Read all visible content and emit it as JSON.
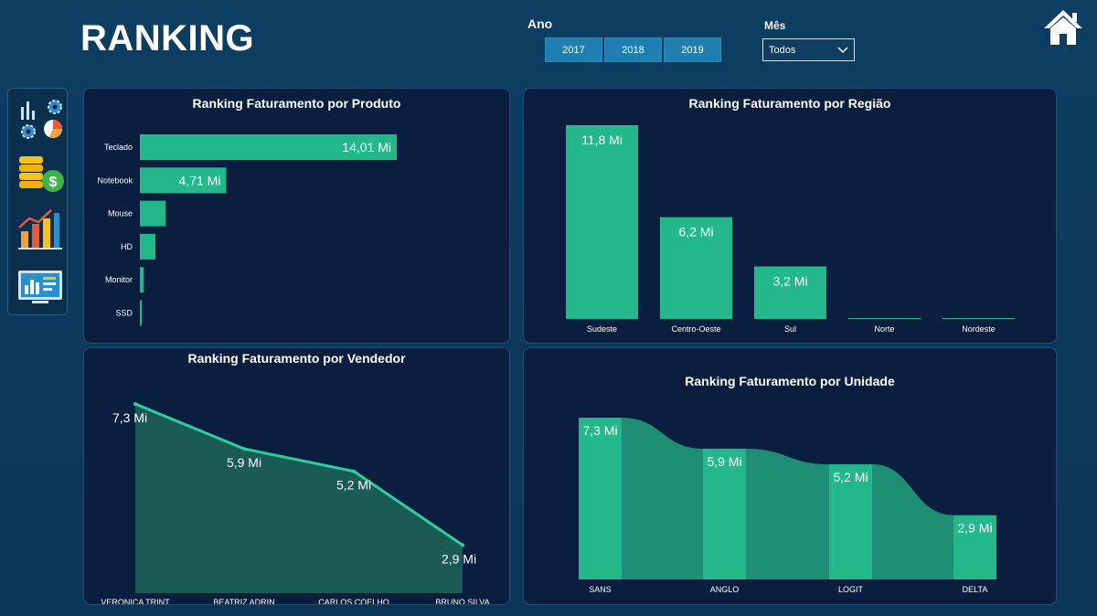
{
  "header": {
    "title": "RANKING",
    "ano_label": "Ano",
    "years": [
      "2017",
      "2018",
      "2019"
    ],
    "mes_label": "Mês",
    "mes_value": "Todos"
  },
  "colors": {
    "bar": "#23b88a",
    "area_fill": "#1b5b55",
    "area_line": "#2ccf9e",
    "ribbon": "#1e8f75",
    "panel_bg": "#0a1e3f"
  },
  "nav": {
    "icons": [
      "settings-chart-icon",
      "money-coins-icon",
      "growth-chart-icon",
      "dashboard-monitor-icon"
    ]
  },
  "panels": {
    "produto": {
      "title": "Ranking Faturamento por Produto",
      "chart_data": {
        "type": "bar",
        "orientation": "horizontal",
        "categories": [
          "Teclado",
          "Notebook",
          "Mouse",
          "HD",
          "Monitor",
          "SSD"
        ],
        "values": [
          14.01,
          4.71,
          1.4,
          0.85,
          0.2,
          0.1
        ],
        "labels": [
          "14,01 Mi",
          "4,71 Mi",
          "",
          "",
          "",
          ""
        ],
        "unit": "Mi"
      }
    },
    "regiao": {
      "title": "Ranking Faturamento por Região",
      "chart_data": {
        "type": "bar",
        "orientation": "vertical",
        "categories": [
          "Sudeste",
          "Centro-Oeste",
          "Sul",
          "Norte",
          "Nordeste"
        ],
        "values": [
          11.8,
          6.2,
          3.2,
          0.05,
          0.02
        ],
        "labels": [
          "11,8 Mi",
          "6,2 Mi",
          "3,2 Mi",
          "",
          ""
        ],
        "unit": "Mi"
      }
    },
    "vendedor": {
      "title": "Ranking Faturamento por Vendedor",
      "chart_data": {
        "type": "area",
        "categories": [
          "VERONICA TRINT",
          "BEATRIZ ADRIN",
          "CARLOS COELHO",
          "BRUNO SILVA"
        ],
        "values": [
          7.3,
          5.9,
          5.2,
          2.9
        ],
        "labels": [
          "7,3 Mi",
          "5,9 Mi",
          "5,2 Mi",
          "2,9 Mi"
        ],
        "unit": "Mi"
      }
    },
    "unidade": {
      "title": "Ranking Faturamento por Unidade",
      "chart_data": {
        "type": "bar",
        "subtype": "ribbon",
        "categories": [
          "SANS",
          "ANGLO",
          "LOGIT",
          "DELTA"
        ],
        "values": [
          7.3,
          5.9,
          5.2,
          2.9
        ],
        "labels": [
          "7,3 Mi",
          "5,9 Mi",
          "5,2 Mi",
          "2,9 Mi"
        ],
        "unit": "Mi"
      }
    }
  }
}
